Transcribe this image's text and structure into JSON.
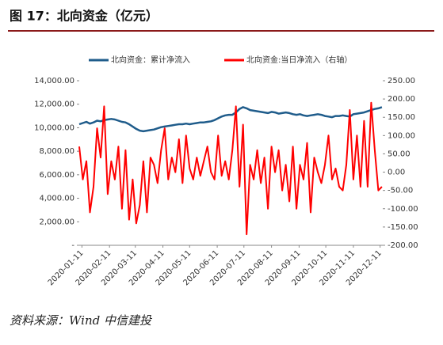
{
  "chart_data": {
    "type": "line",
    "title": "图 17：北向资金（亿元）",
    "source": "资料来源：Wind 中信建投",
    "x": [
      "2020-01-08",
      "2020-01-12",
      "2020-01-16",
      "2020-01-20",
      "2020-01-24",
      "2020-01-28",
      "2020-02-01",
      "2020-02-05",
      "2020-02-09",
      "2020-02-13",
      "2020-02-17",
      "2020-02-21",
      "2020-02-25",
      "2020-02-29",
      "2020-03-04",
      "2020-03-08",
      "2020-03-12",
      "2020-03-16",
      "2020-03-20",
      "2020-03-24",
      "2020-03-28",
      "2020-04-01",
      "2020-04-05",
      "2020-04-09",
      "2020-04-13",
      "2020-04-17",
      "2020-04-21",
      "2020-04-25",
      "2020-04-29",
      "2020-05-03",
      "2020-05-07",
      "2020-05-11",
      "2020-05-15",
      "2020-05-19",
      "2020-05-23",
      "2020-05-27",
      "2020-05-31",
      "2020-06-04",
      "2020-06-08",
      "2020-06-12",
      "2020-06-16",
      "2020-06-20",
      "2020-06-24",
      "2020-06-28",
      "2020-07-02",
      "2020-07-06",
      "2020-07-10",
      "2020-07-14",
      "2020-07-18",
      "2020-07-22",
      "2020-07-26",
      "2020-07-30",
      "2020-08-03",
      "2020-08-07",
      "2020-08-11",
      "2020-08-15",
      "2020-08-19",
      "2020-08-23",
      "2020-08-27",
      "2020-08-31",
      "2020-09-04",
      "2020-09-08",
      "2020-09-12",
      "2020-09-16",
      "2020-09-20",
      "2020-09-24",
      "2020-09-28",
      "2020-10-02",
      "2020-10-06",
      "2020-10-10",
      "2020-10-14",
      "2020-10-18",
      "2020-10-22",
      "2020-10-26",
      "2020-10-30",
      "2020-11-03",
      "2020-11-07",
      "2020-11-11",
      "2020-11-15",
      "2020-11-19",
      "2020-11-23",
      "2020-11-27",
      "2020-12-01",
      "2020-12-05",
      "2020-12-09",
      "2020-12-13"
    ],
    "series": [
      {
        "name": "北向资金：累计净流入",
        "color": "#1f5c8b",
        "axis": "y",
        "values": [
          10300,
          10400,
          10500,
          10350,
          10450,
          10600,
          10550,
          10650,
          10700,
          10750,
          10700,
          10600,
          10500,
          10450,
          10300,
          10100,
          9900,
          9750,
          9700,
          9750,
          9800,
          9850,
          9950,
          10050,
          10100,
          10150,
          10200,
          10250,
          10300,
          10300,
          10350,
          10300,
          10350,
          10400,
          10450,
          10450,
          10500,
          10550,
          10650,
          10800,
          10950,
          11050,
          11100,
          11100,
          11300,
          11600,
          11750,
          11650,
          11500,
          11450,
          11400,
          11350,
          11300,
          11250,
          11350,
          11300,
          11200,
          11250,
          11300,
          11250,
          11150,
          11100,
          11150,
          11050,
          11000,
          11050,
          11100,
          11150,
          11100,
          11000,
          10950,
          10900,
          11000,
          11000,
          11050,
          11000,
          10950,
          11150,
          11200,
          11250,
          11300,
          11400,
          11500,
          11600,
          11650,
          11750
        ]
      },
      {
        "name": "北向资金:当日净流入（右轴）",
        "color": "#ff0000",
        "axis": "y2",
        "values": [
          70,
          -20,
          30,
          -110,
          -40,
          120,
          40,
          180,
          -60,
          30,
          -20,
          70,
          -100,
          60,
          -130,
          -20,
          -140,
          -90,
          30,
          -110,
          40,
          20,
          -30,
          60,
          120,
          -20,
          40,
          0,
          90,
          -30,
          100,
          10,
          -20,
          40,
          -10,
          30,
          70,
          0,
          -20,
          100,
          -10,
          30,
          -20,
          60,
          180,
          -40,
          130,
          -170,
          20,
          -20,
          60,
          -30,
          40,
          -100,
          70,
          0,
          60,
          -50,
          20,
          -80,
          70,
          -100,
          20,
          -20,
          80,
          -110,
          40,
          0,
          -30,
          20,
          100,
          -20,
          10,
          -40,
          -50,
          20,
          170,
          -20,
          100,
          -40,
          140,
          -40,
          190,
          60,
          -50,
          -40
        ]
      }
    ],
    "xlim": [
      "2020-01-08",
      "2020-12-14"
    ],
    "xticks": [
      "2020-01-11",
      "2020-02-11",
      "2020-03-11",
      "2020-04-11",
      "2020-05-11",
      "2020-06-11",
      "2020-07-11",
      "2020-08-11",
      "2020-09-11",
      "2020-10-11",
      "2020-11-11",
      "2020-12-11"
    ],
    "ylim": [
      0,
      14000
    ],
    "yticks": [
      {
        "value": 0,
        "label": "-"
      },
      {
        "value": 2000,
        "label": "2,000.00"
      },
      {
        "value": 4000,
        "label": "4,000.00"
      },
      {
        "value": 6000,
        "label": "6,000.00"
      },
      {
        "value": 8000,
        "label": "8,000.00"
      },
      {
        "value": 10000,
        "label": "10,000.00"
      },
      {
        "value": 12000,
        "label": "12,000.00"
      },
      {
        "value": 14000,
        "label": "14,000.00"
      }
    ],
    "y2lim": [
      -200,
      250
    ],
    "y2ticks": [
      {
        "value": 250,
        "label": "250.00"
      },
      {
        "value": 200,
        "label": "200.00"
      },
      {
        "value": 150,
        "label": "150.00"
      },
      {
        "value": 100,
        "label": "100.00"
      },
      {
        "value": 50,
        "label": "50.00"
      },
      {
        "value": 0,
        "label": "0.00"
      },
      {
        "value": -50,
        "label": "-50.00"
      },
      {
        "value": -100,
        "label": "-100.00"
      },
      {
        "value": -150,
        "label": "-150.00"
      },
      {
        "value": -200,
        "label": "-200.00"
      }
    ],
    "grid": false,
    "legend": "top"
  }
}
